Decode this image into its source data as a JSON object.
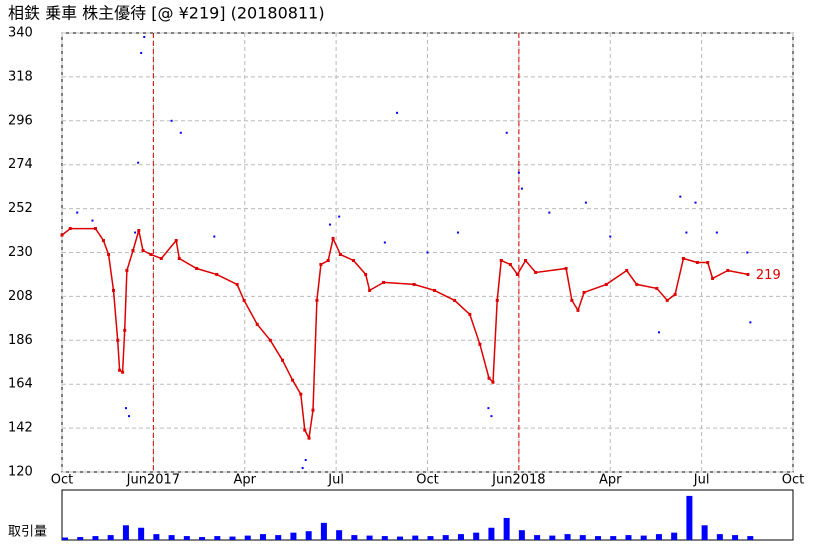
{
  "chart_data": [
    {
      "type": "line",
      "title": "相鉄 乗車 株主優待 [@ ¥219] (20180811)",
      "xlim": [
        0,
        24
      ],
      "ylim": [
        120,
        340
      ],
      "xticks": [
        {
          "value": 0,
          "label": "Oct"
        },
        {
          "value": 3,
          "label": "Jun2017"
        },
        {
          "value": 6,
          "label": "Apr"
        },
        {
          "value": 9,
          "label": "Jul"
        },
        {
          "value": 12,
          "label": "Oct"
        },
        {
          "value": 15,
          "label": "Jun2018"
        },
        {
          "value": 18,
          "label": "Apr"
        },
        {
          "value": 21,
          "label": "Jul"
        },
        {
          "value": 24,
          "label": "Oct"
        }
      ],
      "yticks": [
        120,
        142,
        164,
        186,
        208,
        230,
        252,
        274,
        296,
        318,
        340
      ],
      "grid": true,
      "vlines": [
        3,
        15
      ],
      "vline_color": "#dd0000",
      "series": [
        {
          "type": "scatter",
          "color": "#0000ff",
          "x": [
            0.5,
            1,
            2.4,
            2.6,
            2.7,
            2.5,
            3.6,
            3.9,
            2.2,
            2.1,
            5,
            8,
            7.9,
            9.1,
            8.8,
            10.6,
            12,
            14.1,
            14,
            14.6,
            15.1,
            15,
            16,
            17.2,
            18,
            19.6,
            20.3,
            20.5,
            20.8,
            21.5,
            22.5,
            22.6,
            11,
            13
          ],
          "values": [
            250,
            246,
            240,
            330,
            338,
            275,
            296,
            290,
            148,
            152,
            238,
            126,
            122,
            248,
            244,
            235,
            230,
            148,
            152,
            290,
            262,
            270,
            250,
            255,
            238,
            190,
            258,
            240,
            255,
            240,
            230,
            195,
            300,
            240
          ]
        },
        {
          "type": "line",
          "color": "#dd0000",
          "end_label": "219",
          "x": [
            0,
            0.27,
            1.1,
            1.36,
            1.53,
            1.69,
            1.83,
            1.89,
            1.99,
            2.06,
            2.13,
            2.33,
            2.52,
            2.66,
            2.92,
            3.26,
            3.75,
            3.85,
            4.42,
            5.08,
            5.75,
            5.98,
            6.41,
            6.84,
            7.24,
            7.57,
            7.84,
            7.97,
            8.11,
            8.24,
            8.37,
            8.5,
            8.74,
            8.9,
            9.14,
            9.57,
            9.97,
            10.1,
            10.56,
            11.56,
            12.23,
            12.89,
            13.39,
            13.72,
            14.02,
            14.15,
            14.29,
            14.42,
            14.72,
            14.95,
            15.22,
            15.55,
            16.55,
            16.74,
            16.94,
            17.14,
            17.87,
            18.54,
            18.87,
            19.53,
            19.87,
            20.13,
            20.4,
            20.86,
            21.2,
            21.36,
            21.86,
            22.52
          ],
          "values": [
            238.7,
            242,
            242,
            236,
            229,
            211,
            186,
            171,
            170,
            191,
            221,
            231,
            241,
            231,
            229,
            227,
            236,
            227,
            222,
            219,
            214,
            206,
            194,
            186,
            176,
            166,
            159,
            141,
            137,
            151,
            206,
            224,
            226,
            237,
            229,
            226,
            219,
            211,
            215,
            214,
            211,
            206,
            199,
            184,
            167,
            165,
            206,
            226,
            224,
            219,
            226,
            220,
            222,
            206,
            201,
            210,
            214,
            221,
            214,
            212,
            206,
            209,
            227,
            225,
            225,
            217,
            221,
            219
          ]
        }
      ]
    },
    {
      "type": "bar",
      "label": "取引量",
      "color": "#0000ff",
      "xlim": [
        0,
        24
      ],
      "ylim": [
        0,
        100
      ],
      "x": [
        0,
        0.5,
        1,
        1.5,
        2,
        2.5,
        3,
        3.5,
        4,
        4.5,
        5,
        5.5,
        6,
        6.5,
        7,
        7.5,
        8,
        8.5,
        9,
        9.5,
        10,
        10.5,
        11,
        11.5,
        12,
        12.5,
        13,
        13.5,
        14,
        14.5,
        15,
        15.5,
        16,
        16.5,
        17,
        17.5,
        18,
        18.5,
        19,
        19.5,
        20,
        20.5,
        21,
        21.5,
        22,
        22.5
      ],
      "values": [
        5,
        6,
        8,
        10,
        30,
        25,
        12,
        10,
        8,
        6,
        8,
        7,
        9,
        12,
        10,
        15,
        18,
        35,
        20,
        10,
        9,
        8,
        7,
        9,
        8,
        10,
        12,
        15,
        25,
        45,
        20,
        10,
        9,
        12,
        10,
        8,
        8,
        10,
        9,
        12,
        15,
        90,
        30,
        12,
        10,
        8
      ]
    }
  ]
}
